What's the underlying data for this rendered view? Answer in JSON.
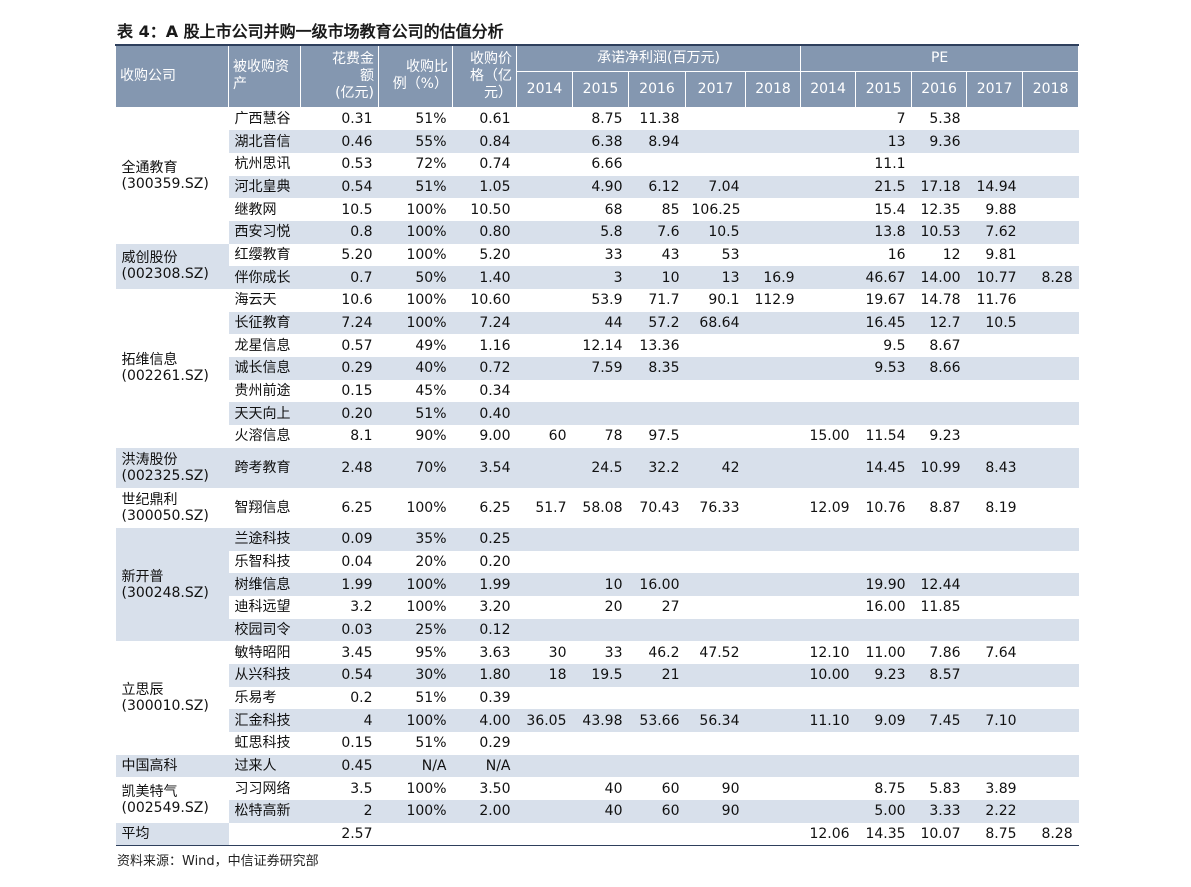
{
  "title": "表 4：A 股上市公司并购一级市场教育公司的估值分析",
  "header": {
    "company": "收购公司",
    "asset": [
      "被收购资",
      "产"
    ],
    "cost": [
      "花费金",
      "额",
      "(亿元)"
    ],
    "ratio": [
      "收购比",
      "例（%）"
    ],
    "price": [
      "收购价",
      "格（亿",
      "元）"
    ],
    "profit": "承诺净利润(百万元)",
    "profit_years": [
      "2014",
      "2015",
      "2016",
      "2017",
      "2018"
    ],
    "pe": "PE",
    "pe_years": [
      "2014",
      "2015",
      "2016",
      "2017",
      "2018"
    ]
  },
  "groups": [
    {
      "name": "全通教育",
      "code": "(300359.SZ)",
      "rows": [
        [
          "广西慧谷",
          "0.31",
          "51%",
          "0.61",
          null,
          "8.75",
          "11.38",
          null,
          null,
          null,
          "7",
          "5.38",
          null,
          null
        ],
        [
          "湖北音信",
          "0.46",
          "55%",
          "0.84",
          null,
          "6.38",
          "8.94",
          null,
          null,
          null,
          "13",
          "9.36",
          null,
          null
        ],
        [
          "杭州思讯",
          "0.53",
          "72%",
          "0.74",
          null,
          "6.66",
          null,
          null,
          null,
          null,
          "11.1",
          null,
          null,
          null
        ],
        [
          "河北皇典",
          "0.54",
          "51%",
          "1.05",
          null,
          "4.90",
          "6.12",
          "7.04",
          null,
          null,
          "21.5",
          "17.18",
          "14.94",
          null
        ],
        [
          "继教网",
          "10.5",
          "100%",
          "10.50",
          null,
          "68",
          "85",
          "106.25",
          null,
          null,
          "15.4",
          "12.35",
          "9.88",
          null
        ],
        [
          "西安习悦",
          "0.8",
          "100%",
          "0.80",
          null,
          "5.8",
          "7.6",
          "10.5",
          null,
          null,
          "13.8",
          "10.53",
          "7.62",
          null
        ]
      ]
    },
    {
      "name": "威创股份",
      "code": "(002308.SZ)",
      "rows": [
        [
          "红缨教育",
          "5.20",
          "100%",
          "5.20",
          null,
          "33",
          "43",
          "53",
          null,
          null,
          "16",
          "12",
          "9.81",
          null
        ],
        [
          "伴你成长",
          "0.7",
          "50%",
          "1.40",
          null,
          "3",
          "10",
          "13",
          "16.9",
          null,
          "46.67",
          "14.00",
          "10.77",
          "8.28"
        ]
      ]
    },
    {
      "name": "拓维信息",
      "code": "(002261.SZ)",
      "rows": [
        [
          "海云天",
          "10.6",
          "100%",
          "10.60",
          null,
          "53.9",
          "71.7",
          "90.1",
          "112.9",
          null,
          "19.67",
          "14.78",
          "11.76",
          null
        ],
        [
          "长征教育",
          "7.24",
          "100%",
          "7.24",
          null,
          "44",
          "57.2",
          "68.64",
          null,
          null,
          "16.45",
          "12.7",
          "10.5",
          null
        ],
        [
          "龙星信息",
          "0.57",
          "49%",
          "1.16",
          null,
          "12.14",
          "13.36",
          null,
          null,
          null,
          "9.5",
          "8.67",
          null,
          null
        ],
        [
          "诚长信息",
          "0.29",
          "40%",
          "0.72",
          null,
          "7.59",
          "8.35",
          null,
          null,
          null,
          "9.53",
          "8.66",
          null,
          null
        ],
        [
          "贵州前途",
          "0.15",
          "45%",
          "0.34",
          null,
          null,
          null,
          null,
          null,
          null,
          null,
          null,
          null,
          null
        ],
        [
          "天天向上",
          "0.20",
          "51%",
          "0.40",
          null,
          null,
          null,
          null,
          null,
          null,
          null,
          null,
          null,
          null
        ],
        [
          "火溶信息",
          "8.1",
          "90%",
          "9.00",
          "60",
          "78",
          "97.5",
          null,
          null,
          "15.00",
          "11.54",
          "9.23",
          null,
          null
        ]
      ]
    },
    {
      "name": "洪涛股份",
      "code": "(002325.SZ)",
      "rows": [
        [
          "跨考教育",
          "2.48",
          "70%",
          "3.54",
          null,
          "24.5",
          "32.2",
          "42",
          null,
          null,
          "14.45",
          "10.99",
          "8.43",
          null
        ]
      ]
    },
    {
      "name": "世纪鼎利",
      "code": "(300050.SZ)",
      "rows": [
        [
          "智翔信息",
          "6.25",
          "100%",
          "6.25",
          "51.7",
          "58.08",
          "70.43",
          "76.33",
          null,
          "12.09",
          "10.76",
          "8.87",
          "8.19",
          null
        ]
      ]
    },
    {
      "name": "新开普",
      "code": "(300248.SZ)",
      "rows": [
        [
          "兰途科技",
          "0.09",
          "35%",
          "0.25",
          null,
          null,
          null,
          null,
          null,
          null,
          null,
          null,
          null,
          null
        ],
        [
          "乐智科技",
          "0.04",
          "20%",
          "0.20",
          null,
          null,
          null,
          null,
          null,
          null,
          null,
          null,
          null,
          null
        ],
        [
          "树维信息",
          "1.99",
          "100%",
          "1.99",
          null,
          "10",
          "16.00",
          null,
          null,
          null,
          "19.90",
          "12.44",
          null,
          null
        ],
        [
          "迪科远望",
          "3.2",
          "100%",
          "3.20",
          null,
          "20",
          "27",
          null,
          null,
          null,
          "16.00",
          "11.85",
          null,
          null
        ],
        [
          "校园司令",
          "0.03",
          "25%",
          "0.12",
          null,
          null,
          null,
          null,
          null,
          null,
          null,
          null,
          null,
          null
        ]
      ]
    },
    {
      "name": "立思辰",
      "code": "(300010.SZ)",
      "rows": [
        [
          "敏特昭阳",
          "3.45",
          "95%",
          "3.63",
          "30",
          "33",
          "46.2",
          "47.52",
          null,
          "12.10",
          "11.00",
          "7.86",
          "7.64",
          null
        ],
        [
          "从兴科技",
          "0.54",
          "30%",
          "1.80",
          "18",
          "19.5",
          "21",
          null,
          null,
          "10.00",
          "9.23",
          "8.57",
          null,
          null
        ],
        [
          "乐易考",
          "0.2",
          "51%",
          "0.39",
          null,
          null,
          null,
          null,
          null,
          null,
          null,
          null,
          null,
          null
        ],
        [
          "汇金科技",
          "4",
          "100%",
          "4.00",
          "36.05",
          "43.98",
          "53.66",
          "56.34",
          null,
          "11.10",
          "9.09",
          "7.45",
          "7.10",
          null
        ],
        [
          "虹思科技",
          "0.15",
          "51%",
          "0.29",
          null,
          null,
          null,
          null,
          null,
          null,
          null,
          null,
          null,
          null
        ]
      ]
    },
    {
      "name": "中国高科",
      "rows": [
        [
          "过来人",
          "0.45",
          "N/A",
          "N/A",
          null,
          null,
          null,
          null,
          null,
          null,
          null,
          null,
          null,
          null
        ]
      ]
    },
    {
      "name": "凯美特气",
      "code": "(002549.SZ)",
      "rows": [
        [
          "习习网络",
          "3.5",
          "100%",
          "3.50",
          null,
          "40",
          "60",
          "90",
          null,
          null,
          "8.75",
          "5.83",
          "3.89",
          null
        ],
        [
          "松特高新",
          "2",
          "100%",
          "2.00",
          null,
          "40",
          "60",
          "90",
          null,
          null,
          "5.00",
          "3.33",
          "2.22",
          null
        ]
      ]
    }
  ],
  "average": {
    "label": "平均",
    "cost": "2.57",
    "pe": [
      "12.06",
      "14.35",
      "10.07",
      "8.75",
      "8.28"
    ]
  },
  "source": "资料来源：Wind，中信证券研究部"
}
